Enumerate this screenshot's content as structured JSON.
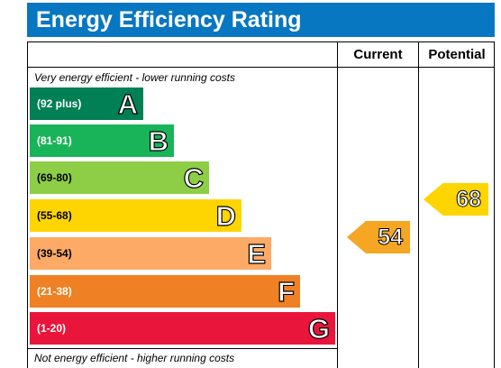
{
  "title": "Energy Efficiency Rating",
  "columns": {
    "current": "Current",
    "potential": "Potential"
  },
  "top_note": "Very energy efficient - lower running costs",
  "bottom_note": "Not energy efficient - higher running costs",
  "colors": {
    "title_bar": "#0877c2",
    "A": "#008054",
    "B": "#19b459",
    "C": "#8dce46",
    "D": "#ffd500",
    "E": "#fcaa65",
    "F": "#ef8023",
    "G": "#e9153b"
  },
  "chart_data": {
    "type": "bar",
    "title": "Energy Efficiency Rating",
    "categories": [
      "A",
      "B",
      "C",
      "D",
      "E",
      "F",
      "G"
    ],
    "bands": [
      {
        "letter": "A",
        "range": "(92 plus)",
        "color": "#008054"
      },
      {
        "letter": "B",
        "range": "(81-91)",
        "color": "#19b459"
      },
      {
        "letter": "C",
        "range": "(69-80)",
        "color": "#8dce46"
      },
      {
        "letter": "D",
        "range": "(55-68)",
        "color": "#ffd500"
      },
      {
        "letter": "E",
        "range": "(39-54)",
        "color": "#fcaa65"
      },
      {
        "letter": "F",
        "range": "(21-38)",
        "color": "#ef8023"
      },
      {
        "letter": "G",
        "range": "(1-20)",
        "color": "#e9153b"
      }
    ],
    "current": {
      "value": 54,
      "band": "E",
      "color": "#f5a623"
    },
    "potential": {
      "value": 68,
      "band": "D",
      "color": "#ffd500"
    }
  }
}
